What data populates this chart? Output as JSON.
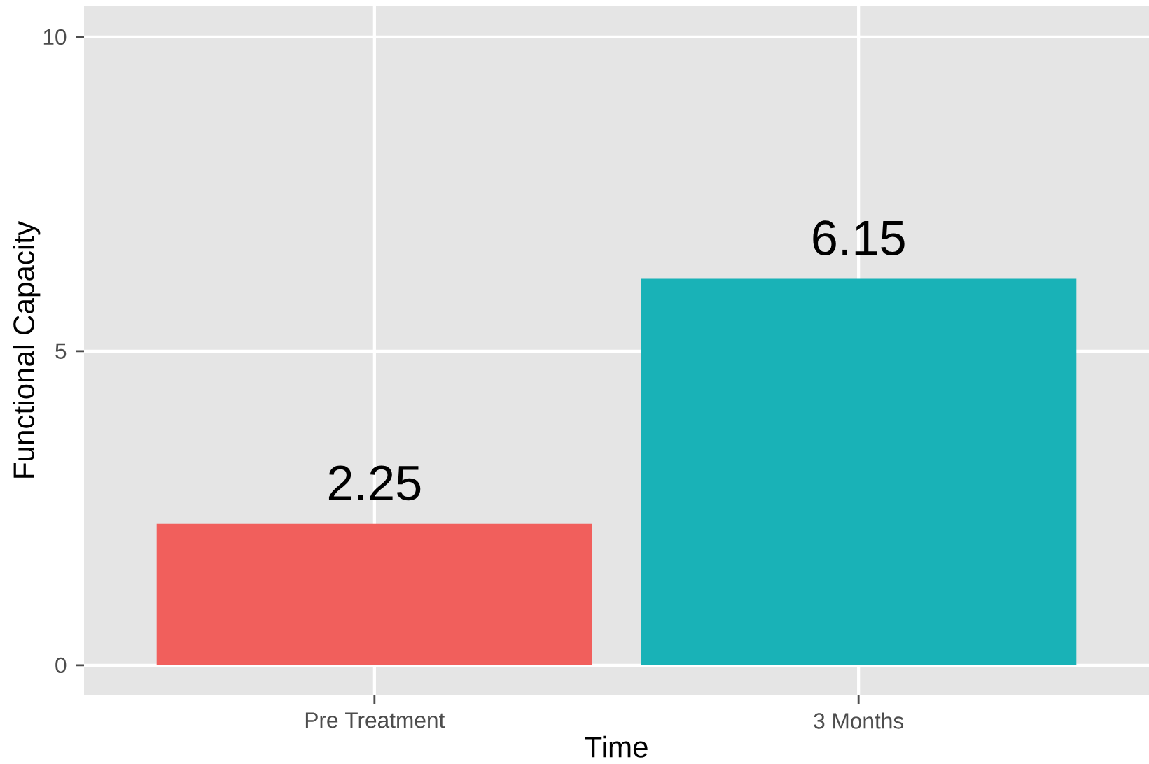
{
  "chart_data": {
    "type": "bar",
    "xlabel": "Time",
    "ylabel": "Functional Capacity",
    "categories": [
      "Pre Treatment",
      "3 Months"
    ],
    "values": [
      2.25,
      6.15
    ],
    "colors": [
      "#f15f5c",
      "#19b2b7"
    ],
    "ylim": [
      -0.48,
      10.5
    ],
    "yticks": [
      0,
      5,
      10
    ],
    "grid": true,
    "data_labels": true
  }
}
